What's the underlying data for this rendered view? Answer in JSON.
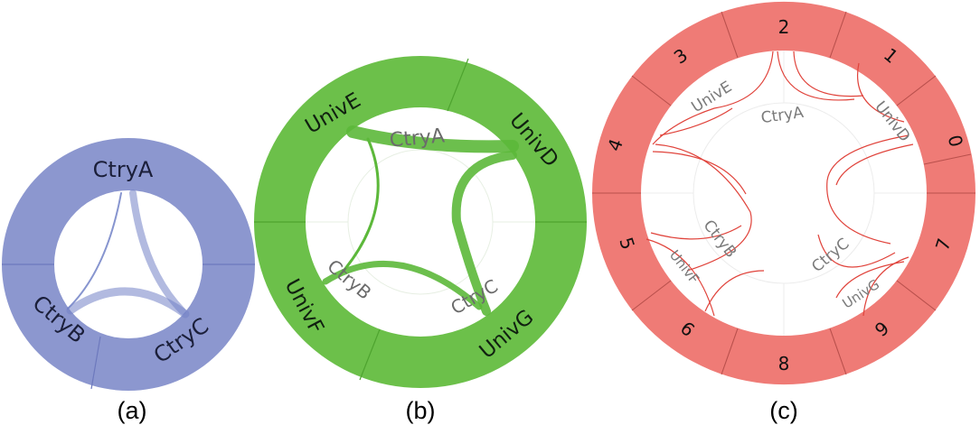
{
  "diagrams": [
    {
      "caption": "(a)",
      "colors": {
        "ring": "#8c97cf",
        "ring_dark": "#6d79bd",
        "chord": "#7282c7",
        "text": "#1b1f3a"
      },
      "sectors": [
        "CtryA",
        "CtryB",
        "CtryC"
      ],
      "inner_labels": []
    },
    {
      "caption": "(b)",
      "colors": {
        "ring": "#6cc04a",
        "ring_dark": "#4ea32f",
        "chord": "#5cb83a",
        "text": "#102010",
        "inner_text": "#6b6b6b"
      },
      "sectors": [
        "UnivE",
        "UnivD",
        "UnivG",
        "UnivF"
      ],
      "inner_labels": [
        "CtryA",
        "CtryB",
        "CtryC"
      ]
    },
    {
      "caption": "(c)",
      "colors": {
        "ring": "#ef7b76",
        "ring_dark": "#b9504c",
        "chord": "#e0433b",
        "text": "#111111",
        "inner_text": "#7a7a7a"
      },
      "sectors": [
        "0",
        "1",
        "2",
        "3",
        "4",
        "5",
        "6",
        "8",
        "9",
        "7"
      ],
      "inner_labels": [
        "CtryA",
        "CtryB",
        "CtryC",
        "UnivE",
        "UnivD",
        "UnivF",
        "UnivG"
      ]
    }
  ]
}
